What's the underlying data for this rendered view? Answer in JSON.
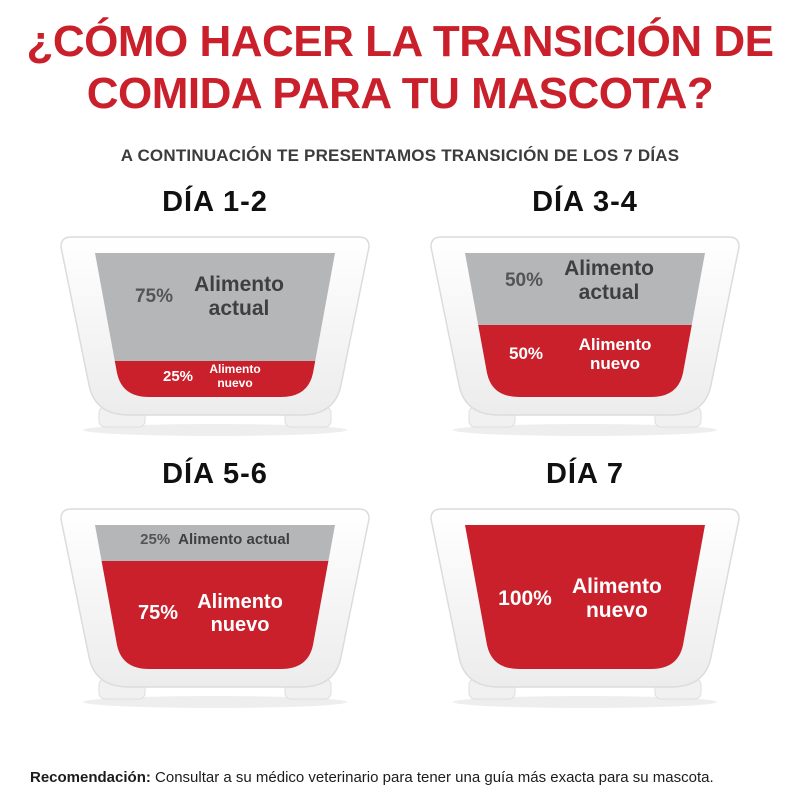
{
  "colors": {
    "red": "#c9202b",
    "gray": "#b5b6b8"
  },
  "title": {
    "line1": "¿CÓMO HACER LA TRANSICIÓN DE",
    "line2": "COMIDA PARA TU MASCOTA?"
  },
  "subtitle": "A CONTINUACIÓN TE PRESENTAMOS TRANSICIÓN DE LOS 7 DÍAS",
  "panels": [
    {
      "day_label": "DÍA 1-2",
      "old_pct": 75,
      "new_pct": 25,
      "old_pct_label": "75%",
      "old_food_label": "Alimento actual",
      "new_pct_label": "25%",
      "new_food_label": "Alimento nuevo"
    },
    {
      "day_label": "DÍA 3-4",
      "old_pct": 50,
      "new_pct": 50,
      "old_pct_label": "50%",
      "old_food_label": "Alimento actual",
      "new_pct_label": "50%",
      "new_food_label": "Alimento nuevo"
    },
    {
      "day_label": "DÍA 5-6",
      "old_pct": 25,
      "new_pct": 75,
      "old_pct_label": "25%",
      "old_food_label": "Alimento actual",
      "new_pct_label": "75%",
      "new_food_label": "Alimento nuevo"
    },
    {
      "day_label": "DÍA 7",
      "old_pct": 0,
      "new_pct": 100,
      "new_pct_label": "100%",
      "new_food_label": "Alimento nuevo"
    }
  ],
  "footer": {
    "label": "Recomendación:",
    "text": " Consultar a su médico veterinario para tener una guía más exacta para su mascota."
  }
}
